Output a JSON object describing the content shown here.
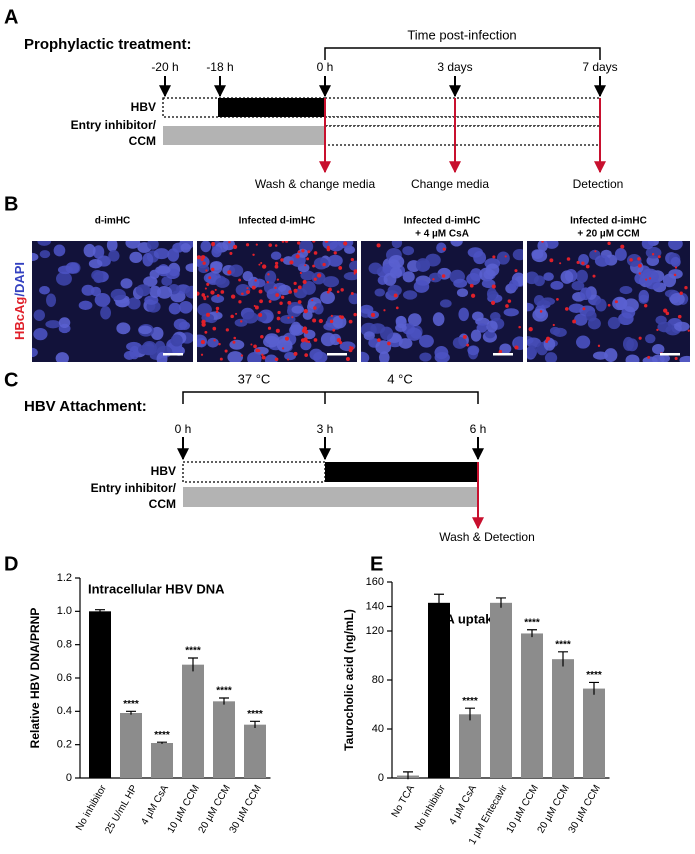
{
  "panel_a": {
    "letter": "A",
    "title": "Prophylactic treatment:",
    "bracket": "Time post-infection",
    "times": [
      "-20 h",
      "-18 h",
      "0 h",
      "3 days",
      "7 days"
    ],
    "rows": [
      "HBV",
      "Entry inhibitor/",
      "CCM"
    ],
    "steps": [
      "Wash & change media",
      "Change media",
      "Detection"
    ]
  },
  "panel_b": {
    "letter": "B",
    "columns": [
      [
        "d-imHC"
      ],
      [
        "Infected d-imHC"
      ],
      [
        "Infected d-imHC",
        "+ 4 µM CsA"
      ],
      [
        "Infected d-imHC",
        "+ 20 µM CCM"
      ]
    ],
    "ylabel_red": "HBcAg",
    "ylabel_blue": "/DAPI"
  },
  "panel_c": {
    "letter": "C",
    "title": "HBV Attachment:",
    "brackets": [
      "37 °C",
      "4 °C"
    ],
    "times": [
      "0 h",
      "3 h",
      "6 h"
    ],
    "rows": [
      "HBV",
      "Entry inhibitor/",
      "CCM"
    ],
    "step": "Wash & Detection"
  },
  "chart_data": [
    {
      "type": "bar",
      "panel": "D",
      "title": "Intracellular HBV DNA",
      "y_label": "Relative HBV DNA/PRNP",
      "categories": [
        "No inhibitor",
        "25 U/mL HP",
        "4 µM CsA",
        "10 µM CCM",
        "20 µM CCM",
        "30 µM CCM"
      ],
      "values": [
        1.0,
        0.39,
        0.21,
        0.68,
        0.46,
        0.32
      ],
      "errors": [
        0.01,
        0.01,
        0.005,
        0.04,
        0.02,
        0.02
      ],
      "colors": [
        "#000000",
        "#8c8c8c",
        "#8c8c8c",
        "#8c8c8c",
        "#8c8c8c",
        "#8c8c8c"
      ],
      "annotations": [
        null,
        "****",
        "****",
        "****",
        "****",
        "****"
      ],
      "ylim": [
        0,
        1.2
      ],
      "yticks": [
        0,
        0.2,
        0.4,
        0.6,
        0.8,
        {
          "value": 1,
          "label": "1.0"
        },
        1.2
      ],
      "grid": false
    },
    {
      "type": "bar",
      "panel": "E",
      "title": "TCA uptake",
      "y_label": "Taurocholic acid (ng/mL)",
      "categories": [
        "No TCA",
        "No inhibitor",
        "4 µM CsA",
        "1 µM Entecavir",
        "10 µM CCM",
        "20 µM CCM",
        "30 µM CCM"
      ],
      "values": [
        2,
        143,
        52,
        143,
        118,
        97,
        73
      ],
      "errors": [
        3,
        7,
        5,
        4,
        3,
        6,
        5
      ],
      "colors": [
        "#8c8c8c",
        "#000000",
        "#8c8c8c",
        "#8c8c8c",
        "#8c8c8c",
        "#8c8c8c",
        "#8c8c8c"
      ],
      "annotations": [
        null,
        null,
        "****",
        null,
        "****",
        "****",
        "****"
      ],
      "ylim": [
        0,
        160
      ],
      "yticks": [
        0,
        40,
        80,
        120,
        140,
        160
      ],
      "grid": false
    }
  ]
}
